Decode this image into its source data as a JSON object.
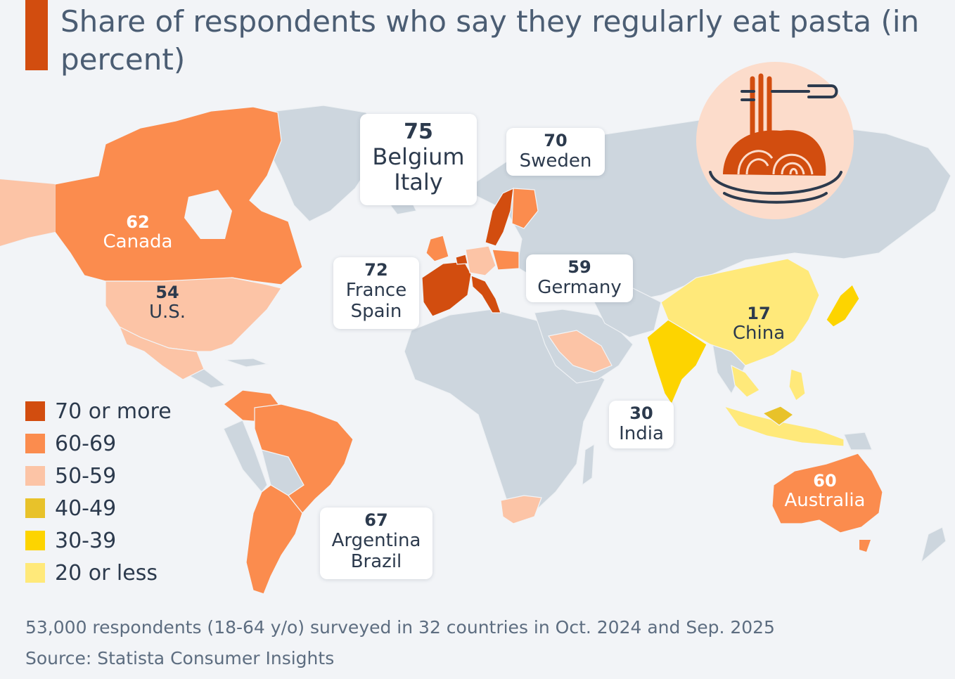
{
  "title": "Share of respondents who say they regularly eat pasta (in percent)",
  "chart_data": {
    "type": "choropleth",
    "metric": "Share of respondents who say they regularly eat pasta",
    "unit": "percent",
    "regions": [
      {
        "label": "Belgium Italy",
        "countries": [
          "Belgium",
          "Italy"
        ],
        "value": 75,
        "bucket": "70 or more"
      },
      {
        "label": "France Spain",
        "countries": [
          "France",
          "Spain"
        ],
        "value": 72,
        "bucket": "70 or more"
      },
      {
        "label": "Sweden",
        "countries": [
          "Sweden"
        ],
        "value": 70,
        "bucket": "70 or more"
      },
      {
        "label": "Argentina Brazil",
        "countries": [
          "Argentina",
          "Brazil"
        ],
        "value": 67,
        "bucket": "60-69"
      },
      {
        "label": "Canada",
        "countries": [
          "Canada"
        ],
        "value": 62,
        "bucket": "60-69"
      },
      {
        "label": "Australia",
        "countries": [
          "Australia"
        ],
        "value": 60,
        "bucket": "60-69"
      },
      {
        "label": "Germany",
        "countries": [
          "Germany"
        ],
        "value": 59,
        "bucket": "50-59"
      },
      {
        "label": "U.S.",
        "countries": [
          "U.S."
        ],
        "value": 54,
        "bucket": "50-59"
      },
      {
        "label": "India",
        "countries": [
          "India"
        ],
        "value": 30,
        "bucket": "30-39"
      },
      {
        "label": "China",
        "countries": [
          "China"
        ],
        "value": 17,
        "bucket": "20 or less"
      }
    ]
  },
  "labels": {
    "belgium_italy": {
      "value": "75",
      "line1": "Belgium",
      "line2": "Italy"
    },
    "sweden": {
      "value": "70",
      "line1": "Sweden"
    },
    "france_spain": {
      "value": "72",
      "line1": "France",
      "line2": "Spain"
    },
    "germany": {
      "value": "59",
      "line1": "Germany"
    },
    "canada": {
      "value": "62",
      "line1": "Canada"
    },
    "us": {
      "value": "54",
      "line1": "U.S."
    },
    "china": {
      "value": "17",
      "line1": "China"
    },
    "india": {
      "value": "30",
      "line1": "India"
    },
    "australia": {
      "value": "60",
      "line1": "Australia"
    },
    "argentina_brazil": {
      "value": "67",
      "line1": "Argentina",
      "line2": "Brazil"
    }
  },
  "legend": [
    {
      "label": "70 or more",
      "color": "#d24d0f"
    },
    {
      "label": "60-69",
      "color": "#fb8c4e"
    },
    {
      "label": "50-59",
      "color": "#fcc4a6"
    },
    {
      "label": "40-49",
      "color": "#e8c22a"
    },
    {
      "label": "30-39",
      "color": "#fdd400"
    },
    {
      "label": "20 or less",
      "color": "#ffe97a"
    }
  ],
  "colors": {
    "land": "#cdd6de",
    "background": "#f2f4f7",
    "title_accent": "#d24d0f",
    "icon_circle": "#fcdccb"
  },
  "footer": {
    "note": "53,000 respondents (18-64 y/o) surveyed in 32 countries in Oct. 2024 and Sep. 2025",
    "source": "Source: Statista Consumer Insights"
  }
}
